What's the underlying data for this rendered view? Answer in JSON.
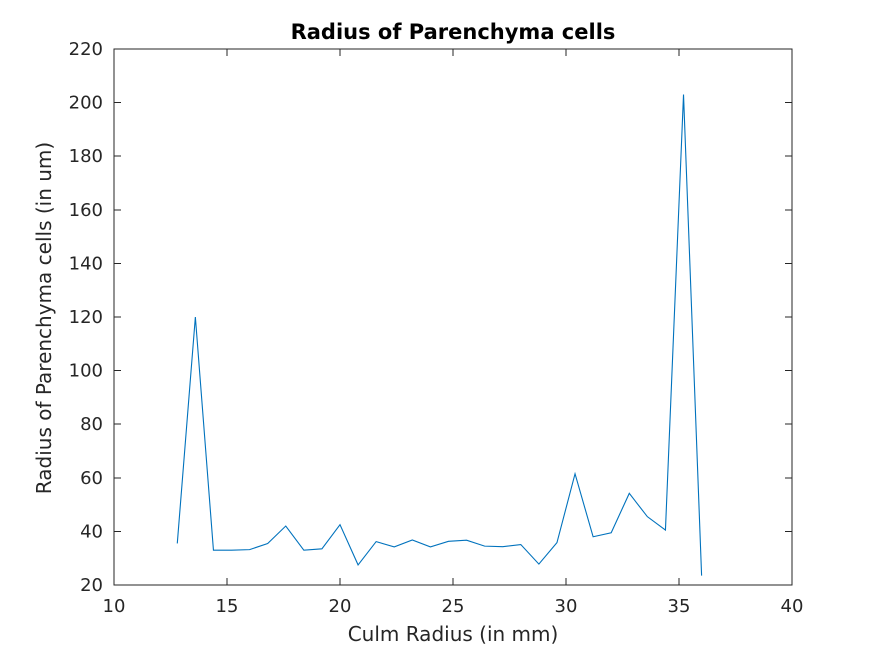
{
  "chart_data": {
    "type": "line",
    "title": "Radius of Parenchyma cells",
    "xlabel": "Culm Radius (in mm)",
    "ylabel": "Radius of Parenchyma cells (in um)",
    "xlim": [
      10,
      40
    ],
    "ylim": [
      20,
      220
    ],
    "xticks": [
      10,
      15,
      20,
      25,
      30,
      35,
      40
    ],
    "yticks": [
      20,
      40,
      60,
      80,
      100,
      120,
      140,
      160,
      180,
      200,
      220
    ],
    "grid": false,
    "series": [
      {
        "color": "#0072BD",
        "x": [
          12.8,
          13.6,
          14.4,
          15.2,
          16.0,
          16.8,
          17.6,
          18.4,
          19.2,
          20.0,
          20.8,
          21.6,
          22.4,
          23.2,
          24.0,
          24.8,
          25.6,
          26.4,
          27.2,
          28.0,
          28.8,
          29.6,
          30.4,
          31.2,
          32.0,
          32.8,
          33.6,
          34.4,
          35.2,
          36.0
        ],
        "y": [
          35.5,
          120,
          33,
          33,
          33.2,
          35.5,
          42,
          33,
          33.5,
          42.5,
          27.5,
          36.2,
          34.2,
          36.8,
          34.2,
          36.3,
          36.7,
          34.5,
          34.3,
          35.1,
          27.8,
          35.8,
          61.5,
          38,
          39.5,
          54.2,
          45.5,
          40.5,
          203,
          23.5
        ]
      }
    ]
  }
}
